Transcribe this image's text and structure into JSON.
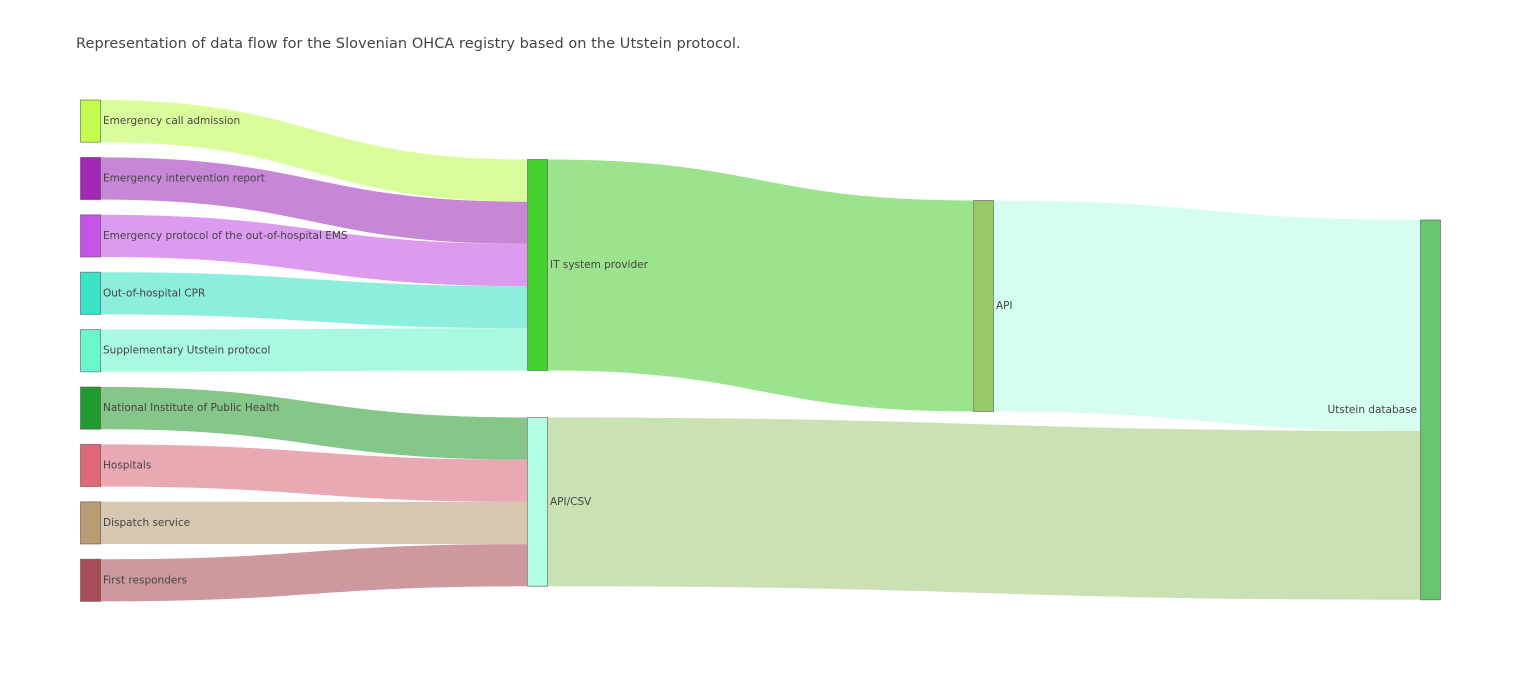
{
  "title": "Representation of data flow for the Slovenian OHCA registry based on the Utstein protocol.",
  "chart_data": {
    "type": "sankey",
    "nodes": [
      {
        "id": "n0",
        "label": "Emergency call admission",
        "color": "#c3fe4f"
      },
      {
        "id": "n1",
        "label": "Emergency intervention report",
        "color": "#a227b5"
      },
      {
        "id": "n2",
        "label": "Emergency protocol of the out-of-hospital EMS",
        "color": "#c653e6"
      },
      {
        "id": "n3",
        "label": "Out-of-hospital CPR",
        "color": "#3ce2c5"
      },
      {
        "id": "n4",
        "label": "Supplementary Utstein protocol",
        "color": "#6af5cc"
      },
      {
        "id": "n5",
        "label": "National Institute of Public Health",
        "color": "#239a2f"
      },
      {
        "id": "n6",
        "label": "Hospitals",
        "color": "#dd6878"
      },
      {
        "id": "n7",
        "label": "Dispatch service",
        "color": "#b89c72"
      },
      {
        "id": "n8",
        "label": "First responders",
        "color": "#a74d56"
      },
      {
        "id": "n9",
        "label": "IT system provider",
        "color": "#45d12f"
      },
      {
        "id": "n10",
        "label": "API/CSV",
        "color": "#b3fde4"
      },
      {
        "id": "n11",
        "label": "API",
        "color": "#98ca6a"
      },
      {
        "id": "n12",
        "label": "Utstein database",
        "color": "#66c66d"
      }
    ],
    "links": [
      {
        "source": "n0",
        "target": "n9",
        "value": 1,
        "color": "#dafd9c"
      },
      {
        "source": "n1",
        "target": "n9",
        "value": 1,
        "color": "#c787d6"
      },
      {
        "source": "n2",
        "target": "n9",
        "value": 1,
        "color": "#dd9bef"
      },
      {
        "source": "n3",
        "target": "n9",
        "value": 1,
        "color": "#8ceedd"
      },
      {
        "source": "n4",
        "target": "n9",
        "value": 1,
        "color": "#a8f8e2"
      },
      {
        "source": "n5",
        "target": "n10",
        "value": 1,
        "color": "#85c689"
      },
      {
        "source": "n6",
        "target": "n10",
        "value": 1,
        "color": "#e9a9b2"
      },
      {
        "source": "n7",
        "target": "n10",
        "value": 1,
        "color": "#d8c7b0"
      },
      {
        "source": "n8",
        "target": "n10",
        "value": 1,
        "color": "#ce999e"
      },
      {
        "source": "n9",
        "target": "n11",
        "value": 5,
        "color": "#9be48d"
      },
      {
        "source": "n11",
        "target": "n12",
        "value": 5,
        "color": "#d5fdf0"
      },
      {
        "source": "n10",
        "target": "n12",
        "value": 4,
        "color": "#cae2b3"
      }
    ]
  }
}
